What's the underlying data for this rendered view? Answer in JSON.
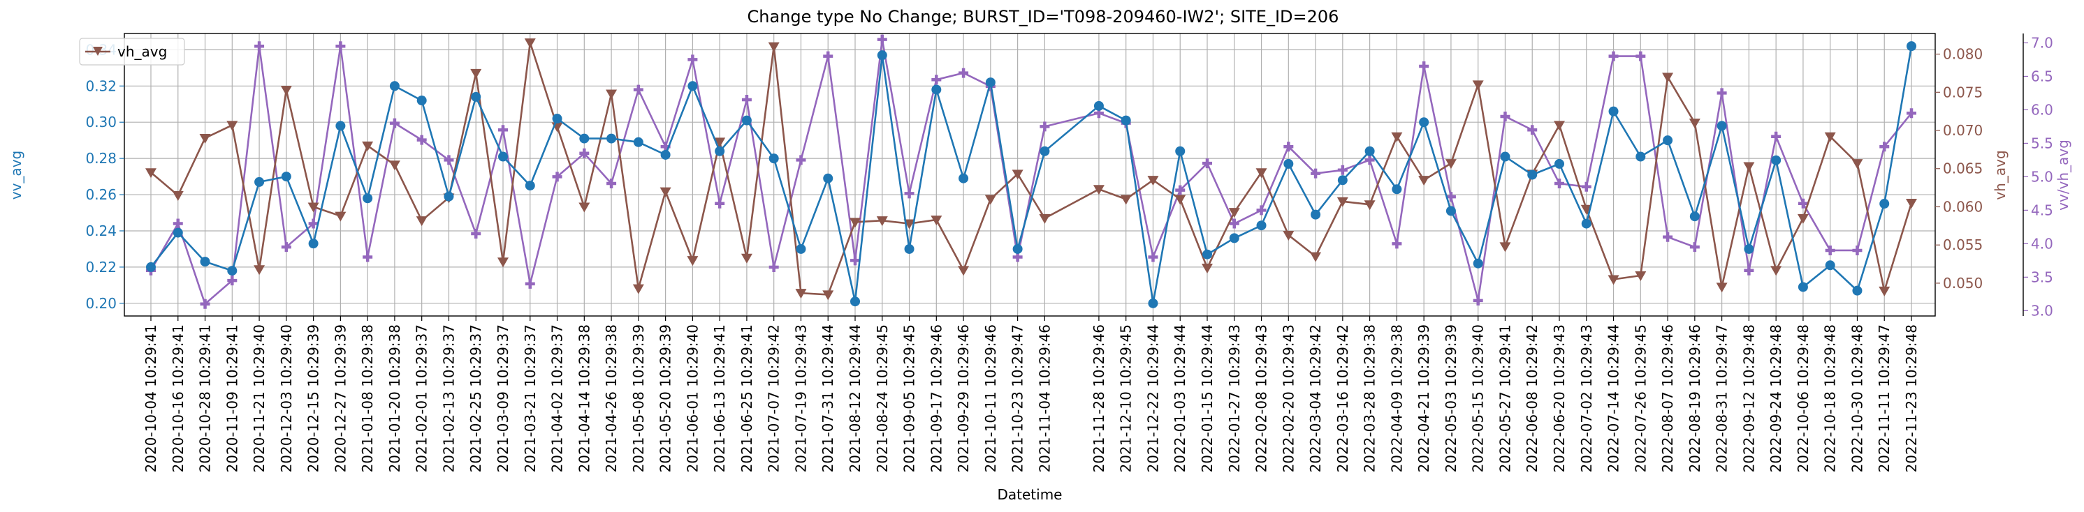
{
  "chart_data": {
    "type": "line",
    "title": "Change type No Change; BURST_ID='T098-209460-IW2'; SITE_ID=206",
    "xlabel": "Datetime",
    "grid": true,
    "legend": {
      "position": "top-left",
      "entries": [
        "vh_avg"
      ]
    },
    "colors": {
      "vv_avg": "#1f77b4",
      "vh_avg": "#8c564b",
      "vv_vh_avg": "#9467bd"
    },
    "x": [
      "2020-10-04 10:29:41",
      "2020-10-16 10:29:41",
      "2020-10-28 10:29:41",
      "2020-11-09 10:29:41",
      "2020-11-21 10:29:40",
      "2020-12-03 10:29:40",
      "2020-12-15 10:29:39",
      "2020-12-27 10:29:39",
      "2021-01-08 10:29:38",
      "2021-01-20 10:29:38",
      "2021-02-01 10:29:37",
      "2021-02-13 10:29:37",
      "2021-02-25 10:29:37",
      "2021-03-09 10:29:37",
      "2021-03-21 10:29:37",
      "2021-04-02 10:29:37",
      "2021-04-14 10:29:38",
      "2021-04-26 10:29:38",
      "2021-05-08 10:29:39",
      "2021-05-20 10:29:39",
      "2021-06-01 10:29:40",
      "2021-06-13 10:29:41",
      "2021-06-25 10:29:41",
      "2021-07-07 10:29:42",
      "2021-07-19 10:29:43",
      "2021-07-31 10:29:44",
      "2021-08-12 10:29:44",
      "2021-08-24 10:29:45",
      "2021-09-05 10:29:45",
      "2021-09-17 10:29:46",
      "2021-09-29 10:29:46",
      "2021-10-11 10:29:46",
      "2021-10-23 10:29:47",
      "2021-11-04 10:29:46",
      "2021-11-28 10:29:46",
      "2021-12-10 10:29:45",
      "2021-12-22 10:29:44",
      "2022-01-03 10:29:44",
      "2022-01-15 10:29:44",
      "2022-01-27 10:29:43",
      "2022-02-08 10:29:43",
      "2022-02-20 10:29:43",
      "2022-03-04 10:29:42",
      "2022-03-16 10:29:42",
      "2022-03-28 10:29:38",
      "2022-04-09 10:29:38",
      "2022-04-21 10:29:39",
      "2022-05-03 10:29:39",
      "2022-05-15 10:29:40",
      "2022-05-27 10:29:41",
      "2022-06-08 10:29:42",
      "2022-06-20 10:29:43",
      "2022-07-02 10:29:43",
      "2022-07-14 10:29:44",
      "2022-07-26 10:29:45",
      "2022-08-07 10:29:46",
      "2022-08-19 10:29:46",
      "2022-08-31 10:29:47",
      "2022-09-12 10:29:48",
      "2022-09-24 10:29:48",
      "2022-10-06 10:29:48",
      "2022-10-18 10:29:48",
      "2022-10-30 10:29:48",
      "2022-11-11 10:29:47",
      "2022-11-23 10:29:48"
    ],
    "axes": {
      "left": {
        "label": "vv_avg",
        "ylim": [
          0.193,
          0.349
        ],
        "ticks": [
          0.2,
          0.22,
          0.24,
          0.26,
          0.28,
          0.3,
          0.32,
          0.34
        ]
      },
      "right1": {
        "label": "vh_avg",
        "ylim": [
          0.0457,
          0.0827
        ],
        "ticks": [
          0.05,
          0.055,
          0.06,
          0.065,
          0.07,
          0.075,
          0.08
        ]
      },
      "right2": {
        "label": "vv/vh_avg",
        "ylim": [
          2.92,
          7.14
        ],
        "ticks": [
          3.0,
          3.5,
          4.0,
          4.5,
          5.0,
          5.5,
          6.0,
          6.5,
          7.0
        ]
      }
    },
    "series": [
      {
        "key": "vv_avg",
        "axis": "left",
        "marker": "circle",
        "values": [
          0.22,
          0.239,
          0.223,
          0.218,
          0.267,
          0.27,
          0.233,
          0.298,
          0.258,
          0.32,
          0.312,
          0.259,
          0.314,
          0.281,
          0.265,
          0.302,
          0.291,
          0.291,
          0.289,
          0.282,
          0.32,
          0.284,
          0.301,
          0.28,
          0.23,
          0.269,
          0.201,
          0.337,
          0.23,
          0.318,
          0.269,
          0.322,
          0.23,
          0.284,
          0.309,
          0.301,
          0.2,
          0.284,
          0.227,
          0.236,
          0.243,
          0.277,
          0.249,
          0.268,
          0.284,
          0.263,
          0.3,
          0.251,
          0.222,
          0.281,
          0.271,
          0.277,
          0.244,
          0.306,
          0.281,
          0.29,
          0.248,
          0.298,
          0.23,
          0.279,
          0.209,
          0.221,
          0.207,
          0.255,
          0.342
        ]
      },
      {
        "key": "vh_avg",
        "name": "vh_avg",
        "axis": "right1",
        "marker": "triangle-down",
        "values": [
          0.0645,
          0.0615,
          0.069,
          0.0707,
          0.0518,
          0.0753,
          0.06,
          0.0588,
          0.068,
          0.0655,
          0.0582,
          0.0612,
          0.0775,
          0.0528,
          0.0815,
          0.0705,
          0.06,
          0.0748,
          0.0493,
          0.062,
          0.053,
          0.0685,
          0.0533,
          0.081,
          0.0487,
          0.0485,
          0.058,
          0.0582,
          0.0578,
          0.0583,
          0.0517,
          0.061,
          0.0643,
          0.0585,
          0.0623,
          0.061,
          0.0635,
          0.061,
          0.052,
          0.0593,
          0.0645,
          0.0563,
          0.0535,
          0.0607,
          0.0603,
          0.0692,
          0.0635,
          0.0657,
          0.076,
          0.0548,
          0.0643,
          0.0707,
          0.0597,
          0.0505,
          0.051,
          0.077,
          0.071,
          0.0495,
          0.0653,
          0.0517,
          0.0585,
          0.0692,
          0.0657,
          0.049,
          0.0605
        ]
      },
      {
        "key": "vv_vh_avg",
        "axis": "right2",
        "marker": "plus",
        "values": [
          3.6,
          4.3,
          3.1,
          3.45,
          6.95,
          3.95,
          4.3,
          6.95,
          3.8,
          5.8,
          5.55,
          5.25,
          4.15,
          5.7,
          3.4,
          5.0,
          5.35,
          4.9,
          6.3,
          5.45,
          6.75,
          4.6,
          6.15,
          3.65,
          5.25,
          6.8,
          3.75,
          7.05,
          4.75,
          6.45,
          6.55,
          6.35,
          3.8,
          5.75,
          5.95,
          5.8,
          3.8,
          4.8,
          5.2,
          4.3,
          4.5,
          5.45,
          5.05,
          5.1,
          5.25,
          4.0,
          6.65,
          4.7,
          3.15,
          5.9,
          5.7,
          4.9,
          4.85,
          6.8,
          6.8,
          4.1,
          3.95,
          6.25,
          3.6,
          5.6,
          4.6,
          3.9,
          3.9,
          5.45,
          5.95
        ]
      }
    ]
  }
}
